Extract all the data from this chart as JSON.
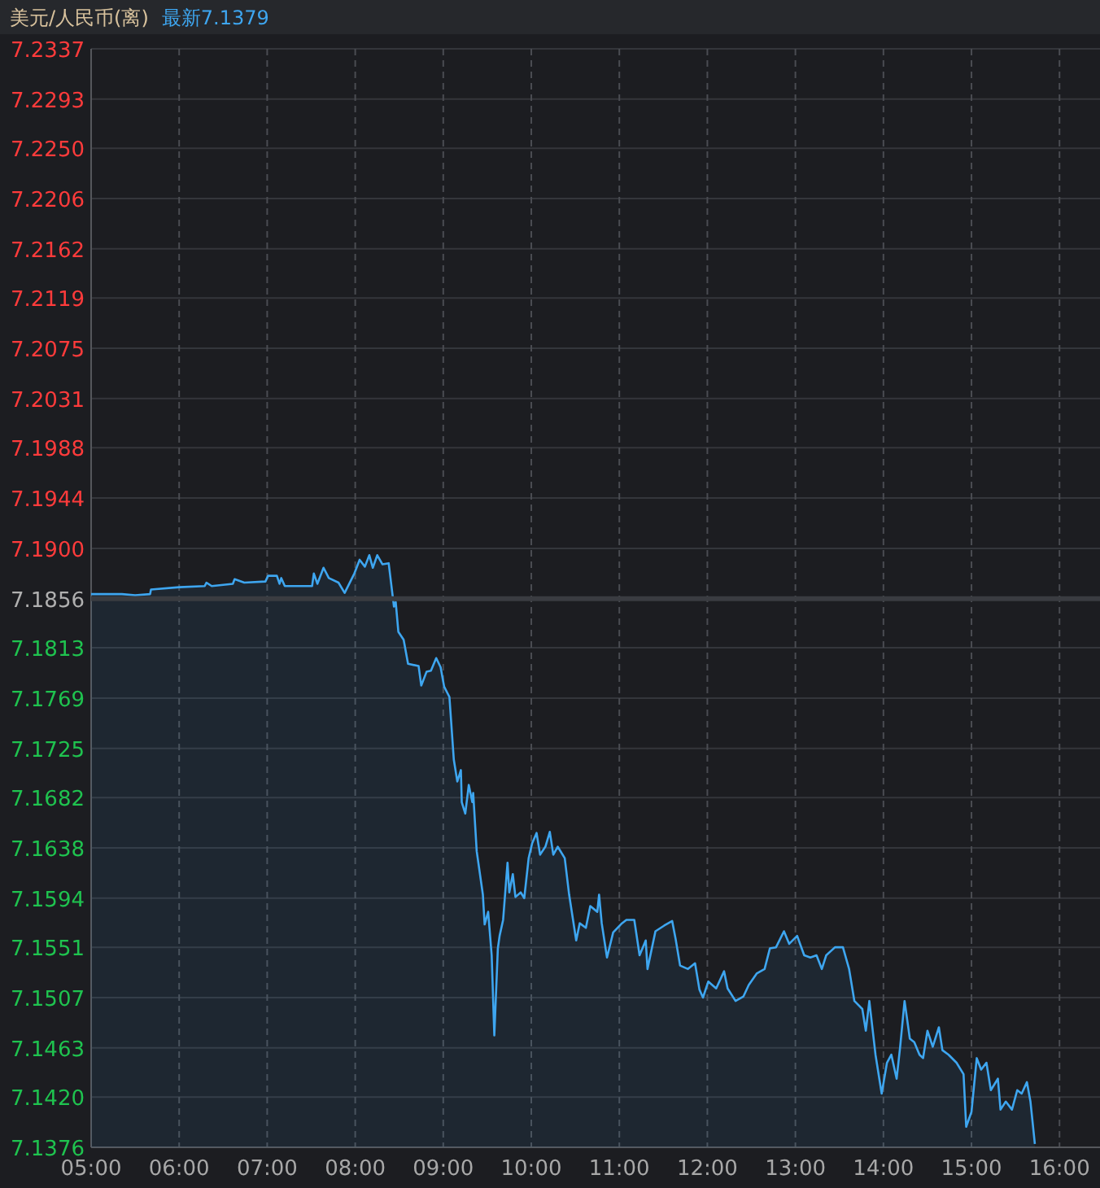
{
  "chart_data": {
    "type": "area",
    "title": "美元/人民币(离)",
    "subtitle": "最新7.1379",
    "x": [
      5.0,
      5.35,
      5.5,
      5.67,
      5.68,
      6.0,
      6.29,
      6.31,
      6.37,
      6.61,
      6.63,
      6.74,
      6.98,
      7.01,
      7.11,
      7.14,
      7.16,
      7.2,
      7.51,
      7.53,
      7.57,
      7.64,
      7.7,
      7.81,
      7.88,
      7.99,
      8.05,
      8.11,
      8.16,
      8.2,
      8.25,
      8.31,
      8.38,
      8.44,
      8.46,
      8.49,
      8.55,
      8.6,
      8.72,
      8.75,
      8.81,
      8.86,
      8.92,
      8.97,
      9.01,
      9.07,
      9.12,
      9.16,
      9.2,
      9.21,
      9.25,
      9.29,
      9.33,
      9.34,
      9.38,
      9.45,
      9.47,
      9.51,
      9.55,
      9.58,
      9.62,
      9.64,
      9.68,
      9.73,
      9.75,
      9.79,
      9.82,
      9.88,
      9.92,
      9.97,
      10.01,
      10.06,
      10.1,
      10.16,
      10.21,
      10.25,
      10.3,
      10.38,
      10.43,
      10.51,
      10.55,
      10.62,
      10.67,
      10.75,
      10.77,
      10.8,
      10.86,
      10.93,
      11.03,
      11.08,
      11.17,
      11.23,
      11.3,
      11.32,
      11.41,
      11.51,
      11.6,
      11.64,
      11.69,
      11.78,
      11.86,
      11.91,
      11.95,
      12.01,
      12.1,
      12.19,
      12.23,
      12.32,
      12.41,
      12.47,
      12.56,
      12.65,
      12.71,
      12.78,
      12.87,
      12.93,
      13.02,
      13.1,
      13.17,
      13.24,
      13.3,
      13.35,
      13.45,
      13.54,
      13.61,
      13.67,
      13.76,
      13.8,
      13.84,
      13.91,
      13.98,
      14.04,
      14.09,
      14.15,
      14.19,
      14.24,
      14.3,
      14.35,
      14.41,
      14.45,
      14.5,
      14.56,
      14.63,
      14.67,
      14.74,
      14.83,
      14.91,
      14.94,
      15.0,
      15.06,
      15.11,
      15.17,
      15.22,
      15.3,
      15.33,
      15.39,
      15.46,
      15.52,
      15.57,
      15.63,
      15.67,
      15.72
    ],
    "series": [
      {
        "color": "#3ea6f0",
        "values": [
          7.186,
          7.186,
          7.1859,
          7.186,
          7.1864,
          7.1866,
          7.1867,
          7.187,
          7.1867,
          7.1869,
          7.1873,
          7.187,
          7.1871,
          7.1876,
          7.1876,
          7.1869,
          7.1874,
          7.1867,
          7.1867,
          7.1878,
          7.1869,
          7.1883,
          7.1874,
          7.187,
          7.1861,
          7.1878,
          7.189,
          7.1884,
          7.1894,
          7.1883,
          7.1894,
          7.1886,
          7.1887,
          7.1849,
          7.1853,
          7.1827,
          7.182,
          7.1799,
          7.1797,
          7.178,
          7.1792,
          7.1793,
          7.1804,
          7.1796,
          7.1779,
          7.177,
          7.1715,
          7.1696,
          7.1706,
          7.1678,
          7.1668,
          7.1693,
          7.1678,
          7.1686,
          7.1635,
          7.1597,
          7.1571,
          7.1582,
          7.1544,
          7.1474,
          7.155,
          7.1561,
          7.1575,
          7.1625,
          7.1599,
          7.1615,
          7.1595,
          7.1599,
          7.1594,
          7.1629,
          7.1642,
          7.1651,
          7.1632,
          7.1639,
          7.1652,
          7.1632,
          7.1639,
          7.1629,
          7.1597,
          7.1557,
          7.1572,
          7.1568,
          7.1587,
          7.1582,
          7.1597,
          7.1572,
          7.1542,
          7.1564,
          7.1572,
          7.1575,
          7.1575,
          7.1544,
          7.1557,
          7.1532,
          7.1565,
          7.157,
          7.1574,
          7.1558,
          7.1535,
          7.1532,
          7.1537,
          7.1514,
          7.1507,
          7.1521,
          7.1515,
          7.153,
          7.1515,
          7.1504,
          7.1508,
          7.1518,
          7.1528,
          7.1532,
          7.155,
          7.1551,
          7.1565,
          7.1554,
          7.1561,
          7.1544,
          7.1542,
          7.1544,
          7.1532,
          7.1544,
          7.1551,
          7.1551,
          7.1532,
          7.1504,
          7.1497,
          7.1478,
          7.1504,
          7.1457,
          7.1423,
          7.145,
          7.1457,
          7.1436,
          7.1464,
          7.1504,
          7.1471,
          7.1468,
          7.1457,
          7.1454,
          7.1478,
          7.1464,
          7.1481,
          7.1461,
          7.1457,
          7.145,
          7.144,
          7.1394,
          7.1407,
          7.1454,
          7.1444,
          7.145,
          7.1426,
          7.1436,
          7.1409,
          7.1416,
          7.1409,
          7.1426,
          7.1423,
          7.1433,
          7.1416,
          7.1379
        ]
      }
    ],
    "xlim": [
      5,
      16.46
    ],
    "ylim": [
      7.1376,
      7.2337
    ],
    "xticks": [
      {
        "value": 5,
        "label": "05:00"
      },
      {
        "value": 6,
        "label": "06:00"
      },
      {
        "value": 7,
        "label": "07:00"
      },
      {
        "value": 8,
        "label": "08:00"
      },
      {
        "value": 9,
        "label": "09:00"
      },
      {
        "value": 10,
        "label": "10:00"
      },
      {
        "value": 11,
        "label": "11:00"
      },
      {
        "value": 12,
        "label": "12:00"
      },
      {
        "value": 13,
        "label": "13:00"
      },
      {
        "value": 14,
        "label": "14:00"
      },
      {
        "value": 15,
        "label": "15:00"
      },
      {
        "value": 16,
        "label": "16:00"
      }
    ],
    "yticks": [
      {
        "value": 7.1376,
        "label": "7.1376"
      },
      {
        "value": 7.142,
        "label": "7.1420"
      },
      {
        "value": 7.1463,
        "label": "7.1463"
      },
      {
        "value": 7.1507,
        "label": "7.1507"
      },
      {
        "value": 7.1551,
        "label": "7.1551"
      },
      {
        "value": 7.1594,
        "label": "7.1594"
      },
      {
        "value": 7.1638,
        "label": "7.1638"
      },
      {
        "value": 7.1682,
        "label": "7.1682"
      },
      {
        "value": 7.1725,
        "label": "7.1725"
      },
      {
        "value": 7.1769,
        "label": "7.1769"
      },
      {
        "value": 7.1813,
        "label": "7.1813"
      },
      {
        "value": 7.1856,
        "label": "7.1856"
      },
      {
        "value": 7.19,
        "label": "7.1900"
      },
      {
        "value": 7.1944,
        "label": "7.1944"
      },
      {
        "value": 7.1988,
        "label": "7.1988"
      },
      {
        "value": 7.2031,
        "label": "7.2031"
      },
      {
        "value": 7.2075,
        "label": "7.2075"
      },
      {
        "value": 7.2119,
        "label": "7.2119"
      },
      {
        "value": 7.2162,
        "label": "7.2162"
      },
      {
        "value": 7.2206,
        "label": "7.2206"
      },
      {
        "value": 7.225,
        "label": "7.2250"
      },
      {
        "value": 7.2293,
        "label": "7.2293"
      },
      {
        "value": 7.2337,
        "label": "7.2337"
      }
    ],
    "grid": true,
    "ref_lines": [
      {
        "axis": "y",
        "value": 7.1856,
        "color": "#3a3c41"
      }
    ]
  }
}
